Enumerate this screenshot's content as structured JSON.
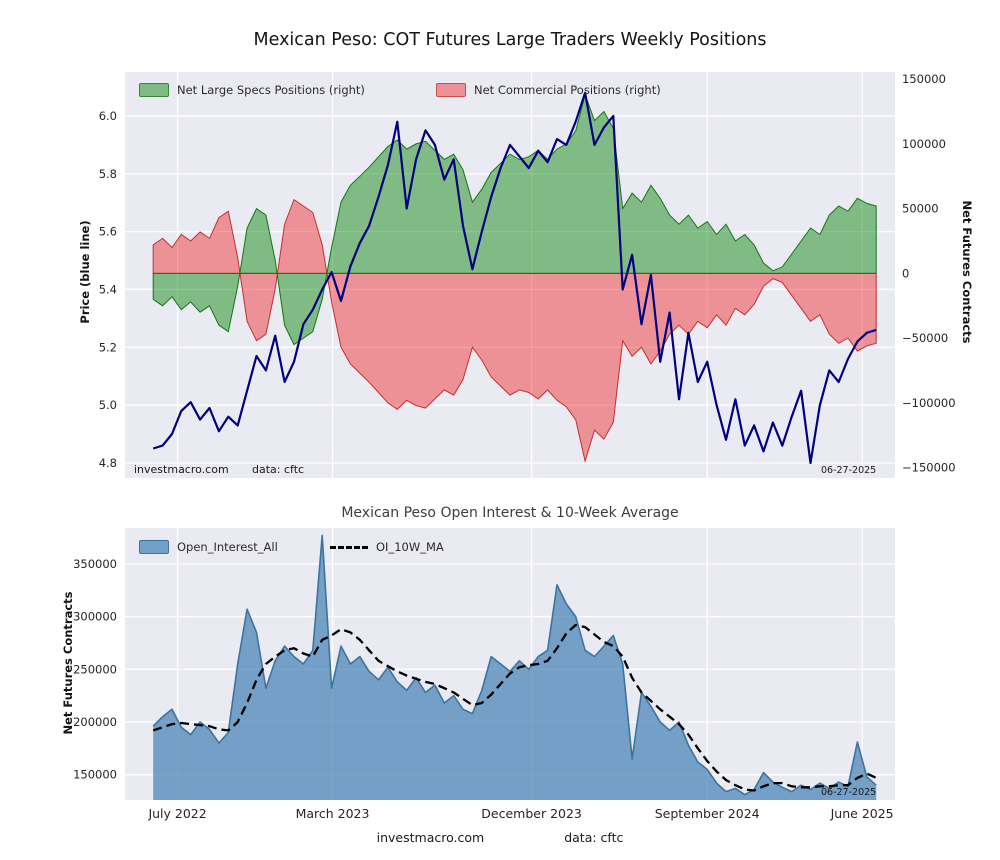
{
  "figure": {
    "top_title": "Mexican Peso: COT Futures Large Traders Weekly Positions",
    "bottom_title": "Mexican Peso Open Interest & 10-Week Average",
    "top_annotation_site": "investmacro.com",
    "top_annotation_source": "data: cftc",
    "top_date": "06-27-2025",
    "bottom_date": "06-27-2025",
    "footer_site": "investmacro.com",
    "footer_source": "data: cftc"
  },
  "colors": {
    "figure_bg": "#ffffff",
    "plot_bg": "#eaeaf2",
    "grid": "#ffffff",
    "price_line": "#000080",
    "specs_fill": "rgba(0,128,0,0.45)",
    "specs_edge": "#157515",
    "comm_fill": "rgba(240,40,40,0.45)",
    "comm_edge": "#c03030",
    "oi_fill": "rgba(70,130,180,0.72)",
    "oi_edge": "#3c74a0",
    "ma_line": "#000000",
    "tick_label": "#262626",
    "title": "#141414",
    "subtitle": "#3d3d3d"
  },
  "chart_data": [
    {
      "type": "area",
      "title": "Mexican Peso: COT Futures Large Traders Weekly Positions",
      "x_description": "Weekly COT data (bi-weekly samples), mid-June 2022 through 06-27-2025, 78 points",
      "xlim": [
        -3,
        79
      ],
      "xtick_positions": [
        2.6,
        19.1,
        40.3,
        59.0,
        75.5
      ],
      "ylabel_left": "Price (blue line)",
      "ylim_left": [
        4.748,
        6.152
      ],
      "yticks_left": [
        "4.8",
        "5.0",
        "5.2",
        "5.4",
        "5.6",
        "5.8",
        "6.0"
      ],
      "ytick_left_values": [
        4.8,
        5.0,
        5.2,
        5.4,
        5.6,
        5.8,
        6.0
      ],
      "ylabel_right": "Net Futures Contracts",
      "ylim_right": [
        -158000,
        155500
      ],
      "yticks_right": [
        "−150000",
        "−100000",
        "−50000",
        "0",
        "50000",
        "100000",
        "150000"
      ],
      "ytick_right_values": [
        -150000,
        -100000,
        -50000,
        0,
        50000,
        100000,
        150000
      ],
      "grid": true,
      "legend_position": "upper-left-inside",
      "legend": [
        {
          "label": "Net Large Specs Positions (right)",
          "color": "green"
        },
        {
          "label": "Net Commercial Positions (right)",
          "color": "red"
        }
      ],
      "series": [
        {
          "name": "Price",
          "type": "line",
          "axis": "left",
          "color": "navy",
          "values": [
            4.85,
            4.86,
            4.9,
            4.98,
            5.01,
            4.95,
            4.99,
            4.91,
            4.96,
            4.93,
            5.05,
            5.17,
            5.12,
            5.24,
            5.08,
            5.15,
            5.28,
            5.33,
            5.4,
            5.46,
            5.36,
            5.48,
            5.56,
            5.62,
            5.72,
            5.83,
            5.98,
            5.68,
            5.85,
            5.95,
            5.9,
            5.78,
            5.85,
            5.62,
            5.47,
            5.6,
            5.72,
            5.82,
            5.9,
            5.86,
            5.82,
            5.88,
            5.84,
            5.92,
            5.9,
            5.98,
            6.08,
            5.9,
            5.96,
            6.0,
            5.4,
            5.52,
            5.28,
            5.45,
            5.15,
            5.32,
            5.02,
            5.25,
            5.08,
            5.15,
            5.0,
            4.88,
            5.02,
            4.86,
            4.93,
            4.84,
            4.94,
            4.86,
            4.96,
            5.05,
            4.8,
            5.0,
            5.12,
            5.08,
            5.16,
            5.22,
            5.25,
            5.26
          ]
        },
        {
          "name": "Net Large Specs Positions",
          "type": "area",
          "axis": "right",
          "color": "green",
          "values": [
            -20000,
            -25000,
            -18000,
            -28000,
            -22000,
            -30000,
            -25000,
            -40000,
            -45000,
            -10000,
            35000,
            50000,
            45000,
            10000,
            -40000,
            -55000,
            -50000,
            -45000,
            -20000,
            20000,
            55000,
            68000,
            75000,
            82000,
            90000,
            98000,
            103000,
            96000,
            100000,
            102000,
            95000,
            88000,
            92000,
            80000,
            55000,
            65000,
            78000,
            85000,
            92000,
            88000,
            90000,
            95000,
            88000,
            96000,
            100000,
            110000,
            138000,
            118000,
            125000,
            112000,
            50000,
            62000,
            55000,
            68000,
            58000,
            45000,
            38000,
            45000,
            35000,
            40000,
            30000,
            38000,
            25000,
            30000,
            22000,
            8000,
            2000,
            5000,
            15000,
            25000,
            35000,
            30000,
            45000,
            52000,
            48000,
            58000,
            54000,
            52000
          ]
        },
        {
          "name": "Net Commercial Positions",
          "type": "area",
          "axis": "right",
          "color": "red",
          "values": [
            22000,
            27000,
            20000,
            30000,
            25000,
            32000,
            27000,
            43000,
            48000,
            12000,
            -37000,
            -52000,
            -47000,
            -12000,
            38000,
            57000,
            52000,
            47000,
            22000,
            -22000,
            -57000,
            -70000,
            -77000,
            -84000,
            -92000,
            -100000,
            -105000,
            -98000,
            -102000,
            -104000,
            -97000,
            -90000,
            -94000,
            -82000,
            -57000,
            -67000,
            -80000,
            -87000,
            -94000,
            -90000,
            -92000,
            -97000,
            -90000,
            -98000,
            -103000,
            -113000,
            -145000,
            -121000,
            -128000,
            -115000,
            -52000,
            -64000,
            -57000,
            -70000,
            -60000,
            -47000,
            -40000,
            -47000,
            -37000,
            -42000,
            -32000,
            -40000,
            -27000,
            -32000,
            -24000,
            -10000,
            -4000,
            -7000,
            -17000,
            -27000,
            -37000,
            -32000,
            -47000,
            -54000,
            -50000,
            -60000,
            -56000,
            -54000
          ]
        }
      ],
      "annotations": [
        "investmacro.com",
        "data: cftc",
        "06-27-2025"
      ]
    },
    {
      "type": "area",
      "title": "Mexican Peso Open Interest & 10-Week Average",
      "xlim": [
        -3,
        79
      ],
      "xtick_positions": [
        2.6,
        19.1,
        40.3,
        59.0,
        75.5
      ],
      "xtick_labels": [
        "July 2022",
        "March 2023",
        "December 2023",
        "September 2024",
        "June 2025"
      ],
      "ylabel": "Net Futures Contracts",
      "ylim": [
        126000,
        384000
      ],
      "yticks": [
        "150000",
        "200000",
        "250000",
        "300000",
        "350000"
      ],
      "ytick_values": [
        150000,
        200000,
        250000,
        300000,
        350000
      ],
      "grid": true,
      "legend_position": "upper-left-inside",
      "legend": [
        {
          "label": "Open_Interest_All",
          "color": "steelblue"
        },
        {
          "label": "OI_10W_MA",
          "color": "black",
          "style": "dashed"
        }
      ],
      "series": [
        {
          "name": "Open_Interest_All",
          "type": "area",
          "color": "steelblue",
          "values": [
            196000,
            205000,
            212000,
            195000,
            188000,
            200000,
            193000,
            180000,
            190000,
            255000,
            307000,
            285000,
            232000,
            258000,
            272000,
            262000,
            255000,
            268000,
            377000,
            232000,
            272000,
            255000,
            262000,
            248000,
            240000,
            252000,
            238000,
            230000,
            242000,
            228000,
            235000,
            218000,
            225000,
            212000,
            208000,
            230000,
            262000,
            255000,
            248000,
            258000,
            250000,
            262000,
            268000,
            330000,
            312000,
            300000,
            268000,
            262000,
            272000,
            282000,
            255000,
            165000,
            228000,
            215000,
            200000,
            192000,
            200000,
            178000,
            162000,
            155000,
            142000,
            134000,
            137000,
            131000,
            136000,
            152000,
            143000,
            138000,
            134000,
            140000,
            136000,
            142000,
            137000,
            143000,
            139000,
            181000,
            148000,
            140000
          ]
        },
        {
          "name": "OI_10W_MA",
          "type": "dashed-line",
          "color": "black",
          "values": [
            192000,
            195000,
            198000,
            199000,
            198000,
            197000,
            196000,
            193000,
            192000,
            200000,
            218000,
            240000,
            255000,
            262000,
            268000,
            270000,
            265000,
            262000,
            278000,
            282000,
            288000,
            285000,
            278000,
            268000,
            258000,
            253000,
            248000,
            244000,
            241000,
            238000,
            236000,
            232000,
            228000,
            222000,
            216000,
            218000,
            226000,
            236000,
            246000,
            252000,
            254000,
            255000,
            258000,
            270000,
            284000,
            292000,
            290000,
            283000,
            276000,
            272000,
            262000,
            242000,
            228000,
            220000,
            212000,
            205000,
            198000,
            188000,
            175000,
            163000,
            153000,
            145000,
            140000,
            136000,
            135000,
            139000,
            142000,
            142000,
            139000,
            138000,
            138000,
            139000,
            139000,
            140000,
            140000,
            147000,
            151000,
            147000
          ]
        }
      ],
      "annotations": [
        "06-27-2025"
      ]
    }
  ]
}
